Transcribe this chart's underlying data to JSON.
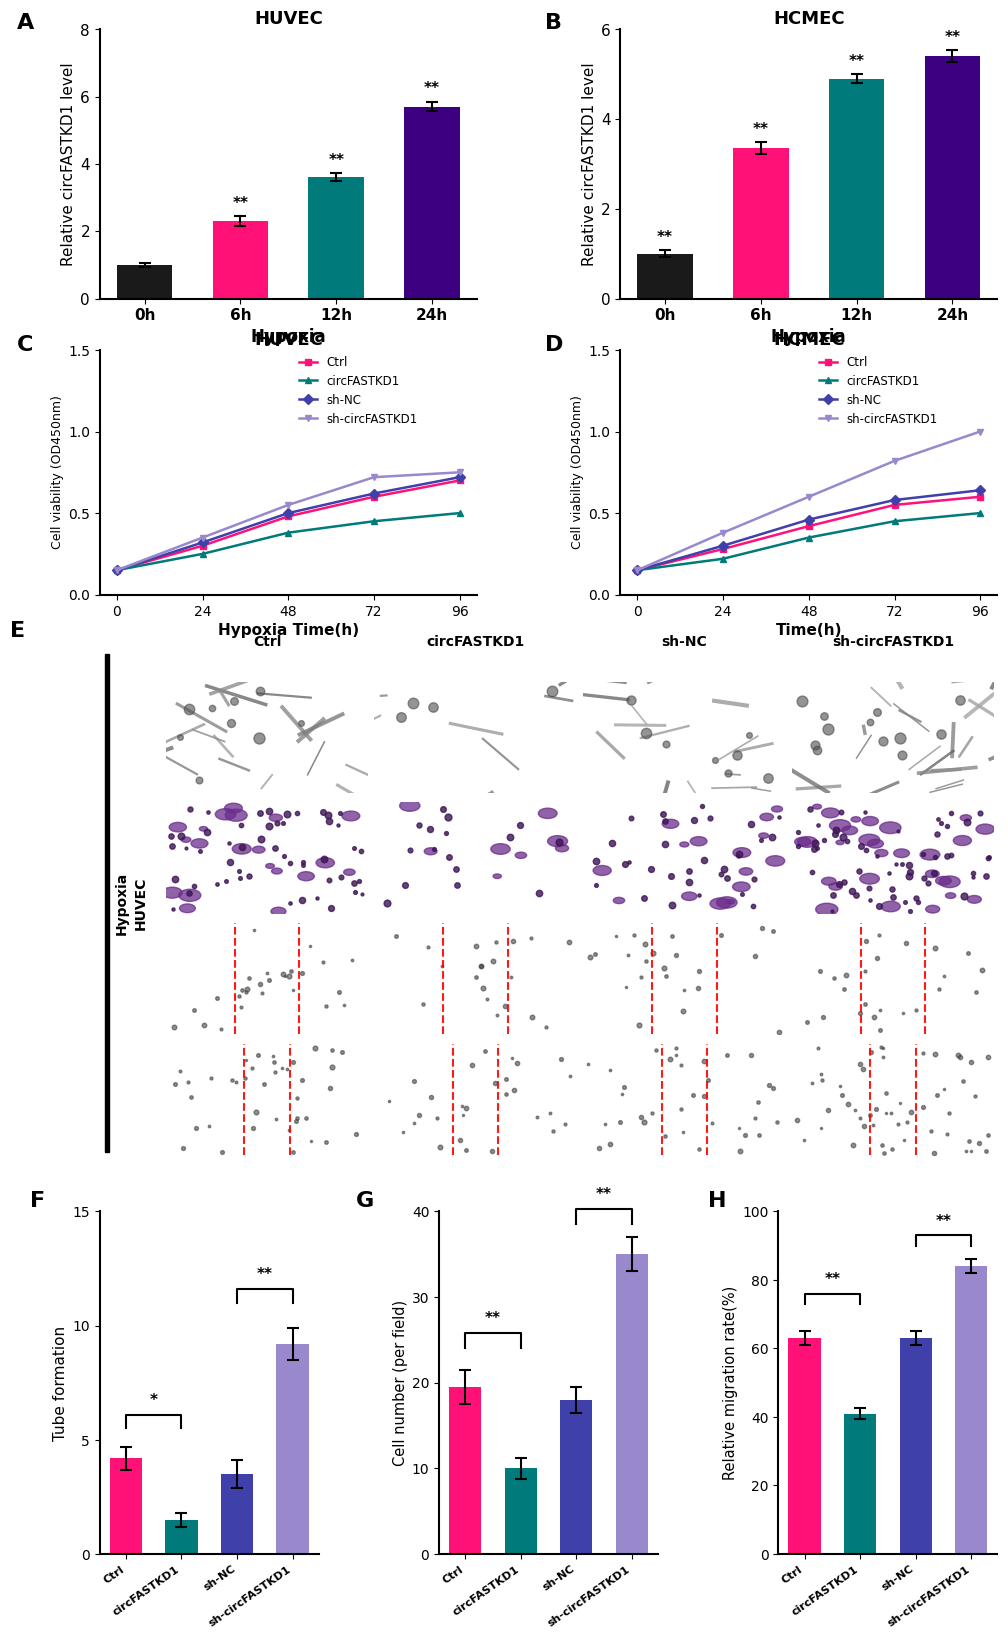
{
  "panel_A": {
    "title": "HUVEC",
    "xlabel": "Hypoxia",
    "ylabel": "Relative circFASTKD1 level",
    "categories": [
      "0h",
      "6h",
      "12h",
      "24h"
    ],
    "values": [
      1.0,
      2.3,
      3.6,
      5.7
    ],
    "errors": [
      0.06,
      0.14,
      0.12,
      0.14
    ],
    "colors": [
      "#1a1a1a",
      "#FF1177",
      "#007a7a",
      "#3d0080"
    ],
    "ylim": [
      0,
      8
    ],
    "yticks": [
      0,
      2,
      4,
      6,
      8
    ],
    "sig_labels": [
      "",
      "**",
      "**",
      "**"
    ]
  },
  "panel_B": {
    "title": "HCMEC",
    "xlabel": "Hypoxia",
    "ylabel": "Relative circFASTKD1 level",
    "categories": [
      "0h",
      "6h",
      "12h",
      "24h"
    ],
    "values": [
      1.0,
      3.35,
      4.9,
      5.4
    ],
    "errors": [
      0.08,
      0.13,
      0.1,
      0.13
    ],
    "colors": [
      "#1a1a1a",
      "#FF1177",
      "#007a7a",
      "#3d0080"
    ],
    "ylim": [
      0,
      6
    ],
    "yticks": [
      0,
      2,
      4,
      6
    ],
    "sig_labels": [
      "**",
      "**",
      "**",
      "**"
    ]
  },
  "panel_C": {
    "title": "HUVEC",
    "xlabel": "Hypoxia Time(h)",
    "ylabel": "Cell viability (OD450nm)",
    "x": [
      0,
      24,
      48,
      72,
      96
    ],
    "series_order": [
      "Ctrl",
      "circFASTKD1",
      "sh-NC",
      "sh-circFASTKD1"
    ],
    "series": {
      "Ctrl": {
        "values": [
          0.15,
          0.3,
          0.48,
          0.6,
          0.7
        ],
        "color": "#FF1177",
        "marker": "s"
      },
      "circFASTKD1": {
        "values": [
          0.15,
          0.25,
          0.38,
          0.45,
          0.5
        ],
        "color": "#007a7a",
        "marker": "^"
      },
      "sh-NC": {
        "values": [
          0.15,
          0.32,
          0.5,
          0.62,
          0.72
        ],
        "color": "#4040aa",
        "marker": "D"
      },
      "sh-circFASTKD1": {
        "values": [
          0.15,
          0.35,
          0.55,
          0.72,
          0.75
        ],
        "color": "#9988cc",
        "marker": "v"
      }
    },
    "ylim": [
      0,
      1.5
    ],
    "yticks": [
      0.0,
      0.5,
      1.0,
      1.5
    ]
  },
  "panel_D": {
    "title": "HCMEC",
    "xlabel": "Time(h)",
    "ylabel": "Cell viability (OD450nm)",
    "x": [
      0,
      24,
      48,
      72,
      96
    ],
    "series_order": [
      "Ctrl",
      "circFASTKD1",
      "sh-NC",
      "sh-circFASTKD1"
    ],
    "series": {
      "Ctrl": {
        "values": [
          0.15,
          0.28,
          0.42,
          0.55,
          0.6
        ],
        "color": "#FF1177",
        "marker": "s"
      },
      "circFASTKD1": {
        "values": [
          0.15,
          0.22,
          0.35,
          0.45,
          0.5
        ],
        "color": "#007a7a",
        "marker": "^"
      },
      "sh-NC": {
        "values": [
          0.15,
          0.3,
          0.46,
          0.58,
          0.64
        ],
        "color": "#4040aa",
        "marker": "D"
      },
      "sh-circFASTKD1": {
        "values": [
          0.15,
          0.38,
          0.6,
          0.82,
          1.0
        ],
        "color": "#9988cc",
        "marker": "v"
      }
    },
    "ylim": [
      0,
      1.5
    ],
    "yticks": [
      0.0,
      0.5,
      1.0,
      1.5
    ]
  },
  "panel_E": {
    "col_labels": [
      "Ctrl",
      "circFASTKD1",
      "sh-NC",
      "sh-circFASTKD1"
    ],
    "n_rows": 4,
    "n_cols": 4
  },
  "panel_F": {
    "ylabel": "Tube formation",
    "categories": [
      "Ctrl",
      "circFASTKD1",
      "sh-NC",
      "sh-circFASTKD1"
    ],
    "values": [
      4.2,
      1.5,
      3.5,
      9.2
    ],
    "errors": [
      0.5,
      0.3,
      0.6,
      0.7
    ],
    "colors": [
      "#FF1177",
      "#007a7a",
      "#4040aa",
      "#9988cc"
    ],
    "ylim": [
      0,
      15
    ],
    "yticks": [
      0,
      5,
      10,
      15
    ],
    "sig_bracket1": [
      0,
      1,
      5.5,
      "*"
    ],
    "sig_bracket2": [
      2,
      3,
      11.0,
      "**"
    ]
  },
  "panel_G": {
    "ylabel": "Cell number (per field)",
    "categories": [
      "Ctrl",
      "circFASTKD1",
      "sh-NC",
      "sh-circFASTKD1"
    ],
    "values": [
      19.5,
      10.0,
      18.0,
      35.0
    ],
    "errors": [
      2.0,
      1.2,
      1.5,
      2.0
    ],
    "colors": [
      "#FF1177",
      "#007a7a",
      "#4040aa",
      "#9988cc"
    ],
    "ylim": [
      0,
      40
    ],
    "yticks": [
      0,
      10,
      20,
      30,
      40
    ],
    "sig_bracket1": [
      0,
      1,
      24.0,
      "**"
    ],
    "sig_bracket2": [
      2,
      3,
      38.5,
      "**"
    ]
  },
  "panel_H": {
    "ylabel": "Relative migration rate(%)",
    "categories": [
      "Ctrl",
      "circFASTKD1",
      "sh-NC",
      "sh-circFASTKD1"
    ],
    "values": [
      63.0,
      41.0,
      63.0,
      84.0
    ],
    "errors": [
      2.0,
      1.5,
      2.0,
      2.0
    ],
    "colors": [
      "#FF1177",
      "#007a7a",
      "#4040aa",
      "#9988cc"
    ],
    "ylim": [
      0,
      100
    ],
    "yticks": [
      0,
      20,
      40,
      60,
      80,
      100
    ],
    "sig_bracket1": [
      0,
      1,
      73.0,
      "**"
    ],
    "sig_bracket2": [
      2,
      3,
      90.0,
      "**"
    ]
  },
  "background_color": "#ffffff",
  "label_fontsize": 16,
  "title_fontsize": 13,
  "tick_fontsize": 10,
  "axis_label_fontsize": 11
}
